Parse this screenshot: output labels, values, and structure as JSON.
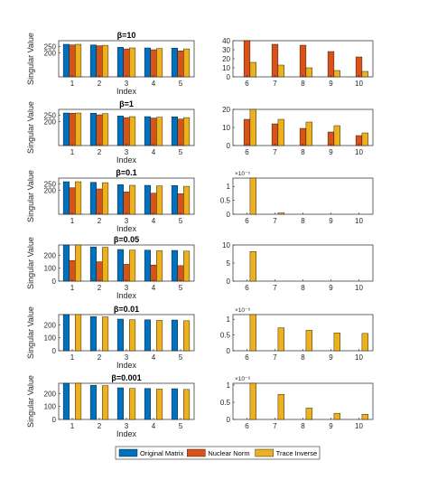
{
  "figure": {
    "legend": [
      {
        "name": "Original Matrix",
        "color": "#0072BD"
      },
      {
        "name": "Nuclear Norm",
        "color": "#D95319"
      },
      {
        "name": "Trace Inverse",
        "color": "#EDB120"
      }
    ],
    "ylabel": "Singular Value",
    "xlabel": "Index"
  },
  "chart_data": [
    {
      "type": "bar",
      "title": "β=10",
      "panel": "left",
      "categories": [
        "1",
        "2",
        "3",
        "4",
        "5"
      ],
      "ylim": [
        0,
        300
      ],
      "yticks": [
        "200",
        "250"
      ],
      "series": [
        {
          "name": "Original Matrix",
          "values": [
            270,
            265,
            245,
            240,
            238
          ]
        },
        {
          "name": "Nuclear Norm",
          "values": [
            265,
            258,
            232,
            225,
            215
          ]
        },
        {
          "name": "Trace Inverse",
          "values": [
            270,
            262,
            240,
            235,
            232
          ]
        }
      ]
    },
    {
      "type": "bar",
      "title": "",
      "panel": "right",
      "categories": [
        "6",
        "7",
        "8",
        "9",
        "10"
      ],
      "ylim": [
        0,
        40
      ],
      "yticks": [
        "0",
        "10",
        "20",
        "30",
        "40"
      ],
      "series": [
        {
          "name": "Original Matrix",
          "values": [
            0,
            0,
            0,
            0,
            0
          ]
        },
        {
          "name": "Nuclear Norm",
          "values": [
            40,
            36,
            35,
            28,
            22
          ]
        },
        {
          "name": "Trace Inverse",
          "values": [
            16,
            13,
            10,
            7,
            6
          ]
        }
      ]
    },
    {
      "type": "bar",
      "title": "β=1",
      "panel": "left",
      "categories": [
        "1",
        "2",
        "3",
        "4",
        "5"
      ],
      "ylim": [
        0,
        300
      ],
      "yticks": [
        "200",
        "250"
      ],
      "series": [
        {
          "name": "Original Matrix",
          "values": [
            270,
            268,
            245,
            240,
            238
          ]
        },
        {
          "name": "Nuclear Norm",
          "values": [
            268,
            255,
            232,
            228,
            220
          ]
        },
        {
          "name": "Trace Inverse",
          "values": [
            270,
            265,
            240,
            235,
            232
          ]
        }
      ]
    },
    {
      "type": "bar",
      "title": "",
      "panel": "right",
      "categories": [
        "6",
        "7",
        "8",
        "9",
        "10"
      ],
      "ylim": [
        0,
        20
      ],
      "yticks": [
        "0",
        "10",
        "20"
      ],
      "series": [
        {
          "name": "Original Matrix",
          "values": [
            0,
            0,
            0,
            0,
            0
          ]
        },
        {
          "name": "Nuclear Norm",
          "values": [
            14.5,
            12,
            9.5,
            7.5,
            5.5
          ]
        },
        {
          "name": "Trace Inverse",
          "values": [
            20,
            14.5,
            13,
            11,
            7
          ]
        }
      ]
    },
    {
      "type": "bar",
      "title": "β=0.1",
      "panel": "left",
      "categories": [
        "1",
        "2",
        "3",
        "4",
        "5"
      ],
      "ylim": [
        0,
        300
      ],
      "yticks": [
        "200",
        "250"
      ],
      "series": [
        {
          "name": "Original Matrix",
          "values": [
            270,
            265,
            245,
            240,
            238
          ]
        },
        {
          "name": "Nuclear Norm",
          "values": [
            220,
            210,
            185,
            175,
            170
          ]
        },
        {
          "name": "Trace Inverse",
          "values": [
            270,
            262,
            240,
            235,
            232
          ]
        }
      ]
    },
    {
      "type": "bar",
      "title": "",
      "panel": "right",
      "exponent": "×10⁻⁵",
      "categories": [
        "6",
        "7",
        "8",
        "9",
        "10"
      ],
      "ylim": [
        0,
        1.3
      ],
      "yticks": [
        "0",
        "0.5",
        "1"
      ],
      "series": [
        {
          "name": "Original Matrix",
          "values": [
            0,
            0,
            0,
            0,
            0
          ]
        },
        {
          "name": "Nuclear Norm",
          "values": [
            0,
            0,
            0,
            0,
            0
          ]
        },
        {
          "name": "Trace Inverse",
          "values": [
            1.3,
            0.05,
            0,
            0,
            0
          ]
        }
      ]
    },
    {
      "type": "bar",
      "title": "β=0.05",
      "panel": "left",
      "categories": [
        "1",
        "2",
        "3",
        "4",
        "5"
      ],
      "ylim": [
        0,
        280
      ],
      "yticks": [
        "0",
        "100",
        "200"
      ],
      "series": [
        {
          "name": "Original Matrix",
          "values": [
            280,
            265,
            245,
            240,
            238
          ]
        },
        {
          "name": "Nuclear Norm",
          "values": [
            160,
            150,
            130,
            125,
            120
          ]
        },
        {
          "name": "Trace Inverse",
          "values": [
            280,
            262,
            240,
            235,
            232
          ]
        }
      ]
    },
    {
      "type": "bar",
      "title": "",
      "panel": "right",
      "categories": [
        "6",
        "7",
        "8",
        "9",
        "10"
      ],
      "ylim": [
        0,
        10
      ],
      "yticks": [
        "0",
        "5",
        "10"
      ],
      "series": [
        {
          "name": "Original Matrix",
          "values": [
            0,
            0,
            0,
            0,
            0
          ]
        },
        {
          "name": "Nuclear Norm",
          "values": [
            0,
            0,
            0,
            0,
            0
          ]
        },
        {
          "name": "Trace Inverse",
          "values": [
            8.2,
            0,
            0,
            0,
            0
          ]
        }
      ]
    },
    {
      "type": "bar",
      "title": "β=0.01",
      "panel": "left",
      "categories": [
        "1",
        "2",
        "3",
        "4",
        "5"
      ],
      "ylim": [
        0,
        280
      ],
      "yticks": [
        "0",
        "100",
        "200"
      ],
      "series": [
        {
          "name": "Original Matrix",
          "values": [
            280,
            265,
            245,
            240,
            238
          ]
        },
        {
          "name": "Nuclear Norm",
          "values": [
            0,
            0,
            0,
            0,
            0
          ]
        },
        {
          "name": "Trace Inverse",
          "values": [
            280,
            262,
            240,
            235,
            232
          ]
        }
      ]
    },
    {
      "type": "bar",
      "title": "",
      "panel": "right",
      "exponent": "×10⁻⁶",
      "categories": [
        "6",
        "7",
        "8",
        "9",
        "10"
      ],
      "ylim": [
        0,
        1.15
      ],
      "yticks": [
        "0",
        "0.5",
        "1"
      ],
      "series": [
        {
          "name": "Original Matrix",
          "values": [
            0,
            0,
            0,
            0,
            0
          ]
        },
        {
          "name": "Nuclear Norm",
          "values": [
            0,
            0,
            0,
            0,
            0
          ]
        },
        {
          "name": "Trace Inverse",
          "values": [
            1.15,
            0.73,
            0.65,
            0.57,
            0.55
          ]
        }
      ]
    },
    {
      "type": "bar",
      "title": "β=0.001",
      "panel": "left",
      "categories": [
        "1",
        "2",
        "3",
        "4",
        "5"
      ],
      "ylim": [
        0,
        280
      ],
      "yticks": [
        "0",
        "100",
        "200"
      ],
      "series": [
        {
          "name": "Original Matrix",
          "values": [
            280,
            265,
            245,
            240,
            238
          ]
        },
        {
          "name": "Nuclear Norm",
          "values": [
            0,
            0,
            0,
            0,
            0
          ]
        },
        {
          "name": "Trace Inverse",
          "values": [
            280,
            262,
            240,
            235,
            232
          ]
        }
      ]
    },
    {
      "type": "bar",
      "title": "",
      "panel": "right",
      "exponent": "×10⁻⁶",
      "categories": [
        "6",
        "7",
        "8",
        "9",
        "10"
      ],
      "ylim": [
        0,
        1.05
      ],
      "yticks": [
        "0",
        "0.5",
        "1"
      ],
      "series": [
        {
          "name": "Original Matrix",
          "values": [
            0,
            0,
            0,
            0,
            0
          ]
        },
        {
          "name": "Nuclear Norm",
          "values": [
            0,
            0,
            0,
            0,
            0
          ]
        },
        {
          "name": "Trace Inverse",
          "values": [
            1.05,
            0.73,
            0.33,
            0.18,
            0.15
          ]
        }
      ]
    }
  ]
}
